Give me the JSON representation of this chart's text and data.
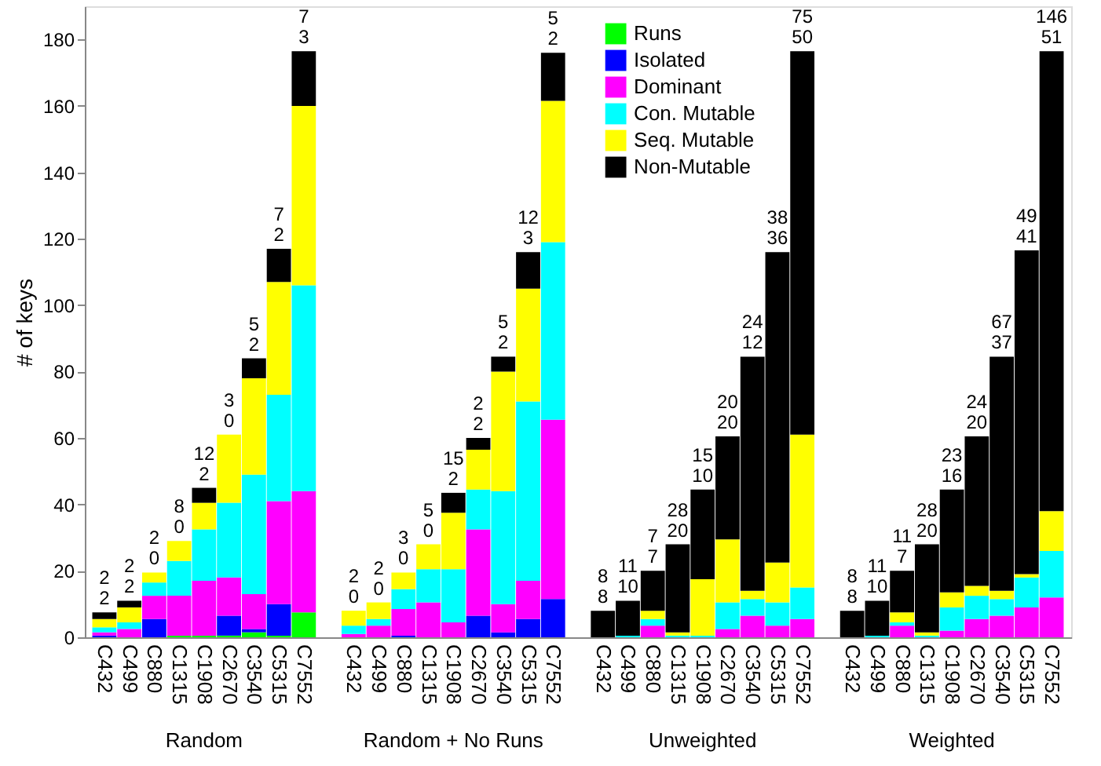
{
  "chart_data": {
    "type": "bar",
    "stacked": true,
    "ylabel": "# of keys",
    "ylim": [
      0,
      190
    ],
    "yticks": [
      0,
      20,
      40,
      60,
      80,
      100,
      120,
      140,
      160,
      180
    ],
    "grid": false,
    "legend": "top",
    "categories": [
      "C432",
      "C499",
      "C880",
      "C1315",
      "C1908",
      "C2670",
      "C3540",
      "C5315",
      "C7552",
      null,
      "C432",
      "C499",
      "C880",
      "C1315",
      "C1908",
      "C2670",
      "C3540",
      "C5315",
      "C7552",
      null,
      "C432",
      "C499",
      "C880",
      "C1315",
      "C1908",
      "C2670",
      "C3540",
      "C5315",
      "C7552",
      null,
      "C432",
      "C499",
      "C880",
      "C1315",
      "C1908",
      "C2670",
      "C3540",
      "C5315",
      "C7552"
    ],
    "annotations": [
      "Random",
      "Random + No Runs",
      "Unweighted",
      "Weighted",
      "2\n2",
      "2\n2",
      "2\n0",
      "8\n0",
      "12\n2",
      "3\n0",
      "5\n2",
      "7\n2",
      "7\n3",
      "2\n0",
      "2\n0",
      "3\n0",
      "5\n0",
      "15\n2",
      "2\n2",
      "5\n2",
      "12\n3",
      "5\n2",
      "8\n8",
      "11\n10",
      "7\n7",
      "28\n20",
      "15\n10",
      "20\n20",
      "24\n12",
      "38\n36",
      "75\n50",
      "8\n8",
      "11\n10",
      "11\n7",
      "28\n20",
      "23\n16",
      "24\n20",
      "67\n37",
      "49\n41",
      "146\n51"
    ],
    "series": [
      {
        "name": "Runs",
        "color": "#00ff00",
        "values": [
          0,
          0,
          0,
          0.5,
          0.5,
          0.5,
          1.5,
          0.5,
          7.5,
          null,
          0,
          0,
          0,
          0,
          0,
          0,
          0,
          0,
          0,
          null,
          0,
          0,
          0,
          0,
          0,
          0,
          0,
          0,
          0,
          null,
          0,
          0,
          0,
          0,
          0,
          0,
          0,
          0,
          0
        ]
      },
      {
        "name": "Isolated",
        "color": "#0000ff",
        "values": [
          0.5,
          0,
          5.5,
          0,
          0,
          6,
          1,
          9.5,
          0,
          null,
          0,
          0,
          0.5,
          0,
          0,
          6.5,
          1.5,
          5.5,
          11.5,
          null,
          0,
          0,
          0,
          0,
          0,
          0,
          0,
          0,
          0,
          null,
          0,
          0,
          0,
          0,
          0,
          0,
          0,
          0,
          0
        ]
      },
      {
        "name": "Dominant",
        "color": "#ff00ff",
        "values": [
          1,
          2.5,
          7,
          12,
          16.5,
          11.5,
          10.5,
          31,
          36.5,
          null,
          1,
          3.5,
          8,
          10.5,
          4.5,
          26,
          8.5,
          11.5,
          54,
          null,
          0,
          0,
          3.5,
          0,
          0,
          2.5,
          6.5,
          3.5,
          5.5,
          null,
          0,
          0,
          3.5,
          0,
          2,
          5.5,
          6.5,
          9,
          12
        ]
      },
      {
        "name": "Con. Mutable",
        "color": "#00ffff",
        "values": [
          1.5,
          2,
          4,
          10.5,
          15.5,
          22.5,
          36,
          32,
          62,
          null,
          2.5,
          2,
          6,
          10,
          16,
          12,
          34,
          54,
          53.5,
          null,
          0,
          0.5,
          2,
          0.5,
          0.5,
          8,
          5,
          7,
          9.5,
          null,
          0,
          0.5,
          1,
          0.5,
          7,
          7,
          5,
          9,
          14
        ]
      },
      {
        "name": "Seq. Mutable",
        "color": "#ffff00",
        "values": [
          2.5,
          4.5,
          3,
          6,
          8,
          20.5,
          29,
          34,
          54,
          null,
          4.5,
          5,
          5,
          7.5,
          17,
          12,
          36,
          34,
          42.5,
          null,
          0,
          0,
          2.5,
          1,
          17,
          19,
          2.5,
          12,
          46,
          null,
          0,
          0,
          3,
          1,
          4.5,
          3,
          2.5,
          1,
          12
        ]
      },
      {
        "name": "Non-Mutable",
        "color": "#000000",
        "values": [
          2,
          2,
          0,
          0,
          4.5,
          0,
          6,
          10,
          16.5,
          null,
          0,
          0,
          0,
          0,
          6,
          3.5,
          4.5,
          11,
          14.5,
          null,
          8,
          10.5,
          12,
          26.5,
          27,
          31,
          70.5,
          93.5,
          115.5,
          null,
          8,
          10.5,
          12.5,
          26.5,
          31,
          45,
          70.5,
          97.5,
          138.5
        ]
      }
    ]
  }
}
